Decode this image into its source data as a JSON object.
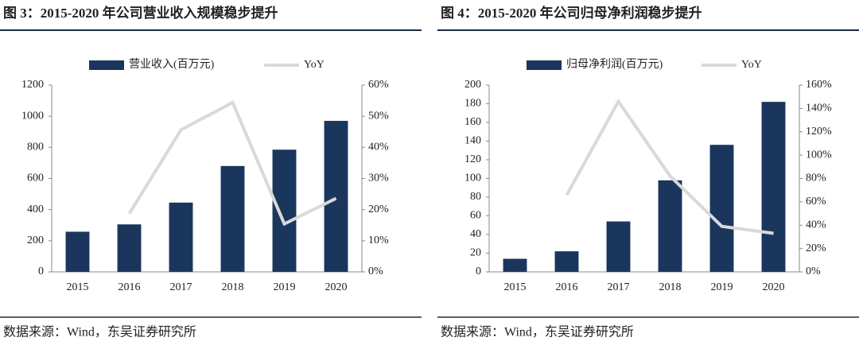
{
  "chart_data": [
    {
      "type": "bar",
      "title": "图 3：2015-2020 年公司营业收入规模稳步提升",
      "source": "数据来源：Wind，东吴证券研究所",
      "categories": [
        "2015",
        "2016",
        "2017",
        "2018",
        "2019",
        "2020"
      ],
      "series": [
        {
          "name": "营业收入(百万元)",
          "type": "bar",
          "color": "#1b365d",
          "values": [
            258,
            305,
            445,
            680,
            785,
            970
          ]
        },
        {
          "name": "YoY",
          "type": "line",
          "axis": "y2",
          "color": "#d9d9d9",
          "values": [
            null,
            18.7,
            45.6,
            54.4,
            15.4,
            23.6
          ]
        }
      ],
      "ylim": [
        0,
        1200
      ],
      "yticks": [
        0,
        200,
        400,
        600,
        800,
        1000,
        1200
      ],
      "y2lim": [
        0,
        60
      ],
      "y2ticks": [
        {
          "value": 0,
          "label": "0%"
        },
        {
          "value": 10,
          "label": "10%"
        },
        {
          "value": 20,
          "label": "20%"
        },
        {
          "value": 30,
          "label": "30%"
        },
        {
          "value": 40,
          "label": "40%"
        },
        {
          "value": 50,
          "label": "50%"
        },
        {
          "value": 60,
          "label": "60%"
        }
      ]
    },
    {
      "type": "bar",
      "title": "图 4：2015-2020 年公司归母净利润稳步提升",
      "source": "数据来源：Wind，东吴证券研究所",
      "categories": [
        "2015",
        "2016",
        "2017",
        "2018",
        "2019",
        "2020"
      ],
      "series": [
        {
          "name": "归母净利润(百万元)",
          "type": "bar",
          "color": "#1b365d",
          "values": [
            14,
            22,
            54,
            98,
            136,
            182
          ]
        },
        {
          "name": "YoY",
          "type": "line",
          "axis": "y2",
          "color": "#d9d9d9",
          "values": [
            null,
            65.8,
            146,
            82,
            39,
            33
          ]
        }
      ],
      "ylim": [
        0,
        200
      ],
      "yticks": [
        0,
        20,
        40,
        60,
        80,
        100,
        120,
        140,
        160,
        180,
        200
      ],
      "y2lim": [
        0,
        160
      ],
      "y2ticks": [
        {
          "value": 0,
          "label": "0%"
        },
        {
          "value": 20,
          "label": "20%"
        },
        {
          "value": 40,
          "label": "40%"
        },
        {
          "value": 60,
          "label": "60%"
        },
        {
          "value": 80,
          "label": "80%"
        },
        {
          "value": 100,
          "label": "100%"
        },
        {
          "value": 120,
          "label": "120%"
        },
        {
          "value": 140,
          "label": "140%"
        },
        {
          "value": 160,
          "label": "160%"
        }
      ]
    }
  ]
}
